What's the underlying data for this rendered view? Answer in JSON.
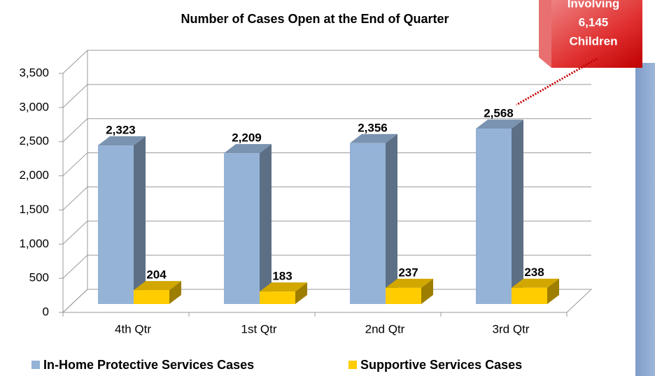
{
  "chart_data": {
    "type": "bar3d",
    "title": "Number of Cases Open at the End of Quarter",
    "categories": [
      "4th Qtr",
      "1st Qtr",
      "2nd Qtr",
      "3rd Qtr"
    ],
    "series": [
      {
        "name": "In-Home Protective Services Cases",
        "color": "#95b3d7",
        "values": [
          2323,
          2209,
          2356,
          2568
        ],
        "value_labels": [
          "2,323",
          "2,209",
          "2,356",
          "2,568"
        ]
      },
      {
        "name": "Supportive Services Cases",
        "color": "#ffcc00",
        "values": [
          204,
          183,
          237,
          238
        ],
        "value_labels": [
          "204",
          "183",
          "237",
          "238"
        ]
      }
    ],
    "ylim": [
      0,
      3500
    ],
    "yticks": [
      0,
      500,
      {
        "value": 1000,
        "label": "1,000"
      },
      {
        "value": 1500,
        "label": "1,500"
      },
      {
        "value": 2000,
        "label": "2,000"
      },
      {
        "value": 2500,
        "label": "2,500"
      },
      {
        "value": 3000,
        "label": "3,000"
      },
      {
        "value": 3500,
        "label": "3,500"
      }
    ],
    "grid": true,
    "legend": "bottom",
    "annotation": [
      "Involving",
      "6,145",
      "Children"
    ]
  }
}
